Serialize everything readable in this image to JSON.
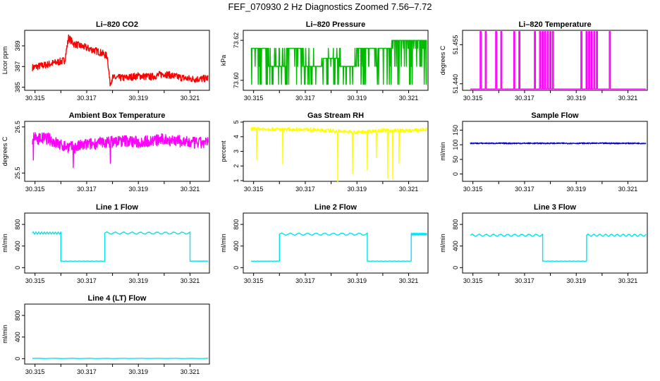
{
  "title": "FEF_070930  2 Hz Diagnostics Zoomed 7.56–7.72",
  "x_range": [
    30.3146,
    30.32175
  ],
  "x_ticks": [
    "30.315",
    "30.317",
    "30.319",
    "30.321"
  ],
  "x_tick_values": [
    30.315,
    30.317,
    30.319,
    30.321
  ],
  "chart_data": [
    {
      "id": "co2",
      "type": "line",
      "title": "Li–820 CO2",
      "ylabel": "Licor ppm",
      "color": "#ff0000",
      "ylim": [
        384.7,
        390.5
      ],
      "yticks": [
        385,
        387,
        389
      ],
      "ytick_labels": [
        "385",
        "387",
        "389"
      ],
      "series": [
        {
          "name": "CO2",
          "x": [
            30.3149,
            30.3155,
            30.316,
            30.31615,
            30.3163,
            30.3165,
            30.317,
            30.3175,
            30.3178,
            30.3179,
            30.318,
            30.3185,
            30.319,
            30.3195,
            30.32,
            30.3205,
            30.321,
            30.3215,
            30.3217
          ],
          "values": [
            386.9,
            387.2,
            387.5,
            387.6,
            389.8,
            389.2,
            388.8,
            388.4,
            388.0,
            385.4,
            385.9,
            385.9,
            386.1,
            386.0,
            386.3,
            386.0,
            385.8,
            385.8,
            385.9
          ],
          "noise": 0.35
        }
      ]
    },
    {
      "id": "pressure",
      "type": "line",
      "title": "Li–820 Pressure",
      "ylabel": "kPa",
      "color": "#00bb00",
      "ylim": [
        73.595,
        73.625
      ],
      "yticks": [
        73.6,
        73.62
      ],
      "ytick_labels": [
        "73.60",
        "73.62"
      ],
      "series": [
        {
          "name": "pressure",
          "levels": [
            73.598,
            73.607,
            73.616,
            73.62,
            73.62
          ],
          "values": [
            73.616,
            73.607,
            73.616,
            73.607,
            73.611,
            73.607,
            73.616,
            73.616,
            73.62,
            73.62
          ],
          "noise": 0
        }
      ]
    },
    {
      "id": "temperature",
      "type": "line",
      "title": "Li–820 Temperature",
      "ylabel": "degrees C",
      "color": "#ff00ff",
      "ylim": [
        51.4375,
        51.4605
      ],
      "yticks": [
        51.44,
        51.455
      ],
      "ytick_labels": [
        "51.440",
        "51.455"
      ],
      "series": [
        {
          "name": "temperature",
          "base": 51.438,
          "spike": 51.46,
          "spike_times": [
            30.3153,
            30.3155,
            30.3159,
            30.3161,
            30.3166,
            30.3168,
            30.3174,
            30.3176,
            30.3177,
            30.3178,
            30.3179,
            30.318,
            30.3181,
            30.3192,
            30.3194,
            30.3195,
            30.3196,
            30.3197,
            30.3198,
            30.3203
          ]
        }
      ]
    },
    {
      "id": "box-temp",
      "type": "line",
      "title": "Ambient Box Temperature",
      "ylabel": "degrees C",
      "color": "#ff00ff",
      "ylim": [
        25.32,
        26.62
      ],
      "yticks": [
        25.5,
        26.5
      ],
      "ytick_labels": [
        "25.5",
        "26.5"
      ],
      "series": [
        {
          "name": "box temperature",
          "x": [
            30.3149,
            30.3155,
            30.316,
            30.3165,
            30.317,
            30.3175,
            30.318,
            30.3185,
            30.319,
            30.3195,
            30.32,
            30.3205,
            30.321,
            30.3215,
            30.3217
          ],
          "values": [
            26.25,
            26.25,
            26.1,
            26.05,
            26.12,
            26.15,
            26.18,
            26.2,
            26.17,
            26.2,
            26.23,
            26.2,
            26.15,
            26.15,
            26.15
          ],
          "noise": 0.13
        }
      ]
    },
    {
      "id": "rh",
      "type": "line",
      "title": "Gas Stream RH",
      "ylabel": "percent",
      "color": "#ffff00",
      "ylim": [
        0.95,
        5.05
      ],
      "yticks": [
        1,
        2,
        3,
        4,
        5
      ],
      "ytick_labels": [
        "1",
        "2",
        "3",
        "4",
        "5"
      ],
      "series": [
        {
          "name": "RH",
          "x": [
            30.3149,
            30.316,
            30.317,
            30.318,
            30.319,
            30.32,
            30.321,
            30.3217
          ],
          "values": [
            4.55,
            4.5,
            4.5,
            4.4,
            4.3,
            4.45,
            4.4,
            4.5
          ],
          "noise": 0.12
        }
      ]
    },
    {
      "id": "sample-flow",
      "type": "line",
      "title": "Sample Flow",
      "ylabel": "ml/min",
      "color": "#0000cc",
      "ylim": [
        -25,
        180
      ],
      "yticks": [
        0,
        50,
        100,
        150
      ],
      "ytick_labels": [
        "0",
        "50",
        "100",
        "150"
      ],
      "series": [
        {
          "name": "sample flow",
          "x": [
            30.3149,
            30.3217
          ],
          "values": [
            105,
            105
          ],
          "noise": 2
        }
      ]
    },
    {
      "id": "line1",
      "type": "line",
      "title": "Line 1 Flow",
      "ylabel": "ml/min",
      "color": "#00e5ee",
      "ylim": [
        -100,
        1010
      ],
      "yticks": [
        0,
        400,
        800
      ],
      "ytick_labels": [
        "0",
        "400",
        "800"
      ],
      "series": [
        {
          "name": "line 1 flow",
          "segments": [
            [
              30.3149,
              30.316,
              640
            ],
            [
              30.316,
              30.3177,
              120
            ],
            [
              30.3177,
              30.321,
              640
            ],
            [
              30.321,
              30.3217,
              120
            ]
          ]
        }
      ]
    },
    {
      "id": "line2",
      "type": "line",
      "title": "Line 2 Flow",
      "ylabel": "ml/min",
      "color": "#00e5ee",
      "ylim": [
        -100,
        1010
      ],
      "yticks": [
        0,
        400,
        800
      ],
      "ytick_labels": [
        "0",
        "400",
        "800"
      ],
      "series": [
        {
          "name": "line 2 flow",
          "segments": [
            [
              30.3149,
              30.316,
              120
            ],
            [
              30.316,
              30.3194,
              620
            ],
            [
              30.3194,
              30.3211,
              120
            ],
            [
              30.3211,
              30.3217,
              620
            ]
          ]
        }
      ]
    },
    {
      "id": "line3",
      "type": "line",
      "title": "Line 3 Flow",
      "ylabel": "ml/min",
      "color": "#00e5ee",
      "ylim": [
        -100,
        1010
      ],
      "yticks": [
        0,
        400,
        800
      ],
      "ytick_labels": [
        "0",
        "400",
        "800"
      ],
      "series": [
        {
          "name": "line 3 flow",
          "segments": [
            [
              30.3149,
              30.3177,
              600
            ],
            [
              30.3177,
              30.3194,
              120
            ],
            [
              30.3194,
              30.3217,
              600
            ]
          ]
        }
      ]
    },
    {
      "id": "line4",
      "type": "line",
      "title": "Line 4 (LT) Flow",
      "ylabel": "ml/min",
      "color": "#00e5ee",
      "ylim": [
        -100,
        1010
      ],
      "yticks": [
        0,
        400,
        800
      ],
      "ytick_labels": [
        "0",
        "400",
        "800"
      ],
      "series": [
        {
          "name": "line 4 flow",
          "segments": [
            [
              30.3149,
              30.3217,
              5
            ]
          ]
        }
      ]
    }
  ]
}
